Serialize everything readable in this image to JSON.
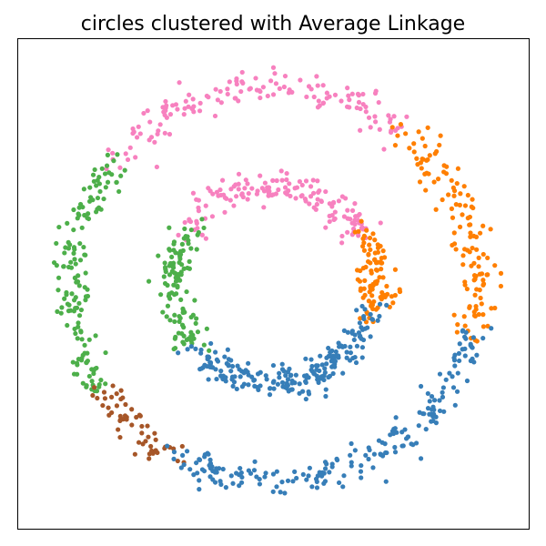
{
  "chart_data": {
    "type": "scatter",
    "title": "circles clustered with Average Linkage",
    "xlabel": "",
    "ylabel": "",
    "grid": false,
    "axis_ticks": false,
    "xlim": [
      -1.25,
      1.25
    ],
    "ylim": [
      -1.25,
      1.25
    ],
    "seed": 7,
    "noise_sd": 0.045,
    "clusters": [
      {
        "label": "pink",
        "color": "#f781bf",
        "rings": [
          {
            "radius": 1.0,
            "from_deg": 50,
            "to_deg": 140,
            "count": 145
          },
          {
            "radius": 0.5,
            "from_deg": 30,
            "to_deg": 145,
            "count": 150
          }
        ]
      },
      {
        "label": "orange",
        "color": "#ff7f00",
        "rings": [
          {
            "radius": 1.0,
            "from_deg": -15,
            "to_deg": 50,
            "count": 130
          },
          {
            "radius": 0.5,
            "from_deg": -15,
            "to_deg": 30,
            "count": 95
          }
        ]
      },
      {
        "label": "green",
        "color": "#4daf4a",
        "rings": [
          {
            "radius": 1.0,
            "from_deg": 140,
            "to_deg": 213,
            "count": 150
          },
          {
            "radius": 0.5,
            "from_deg": 145,
            "to_deg": 222,
            "count": 120
          }
        ]
      },
      {
        "label": "brown",
        "color": "#a65628",
        "rings": [
          {
            "radius": 1.0,
            "from_deg": 213,
            "to_deg": 240,
            "count": 55
          }
        ]
      },
      {
        "label": "blue",
        "color": "#377eb8",
        "rings": [
          {
            "radius": 1.0,
            "from_deg": 240,
            "to_deg": 345,
            "count": 200
          },
          {
            "radius": 0.5,
            "from_deg": 222,
            "to_deg": 345,
            "count": 215
          }
        ]
      }
    ]
  }
}
